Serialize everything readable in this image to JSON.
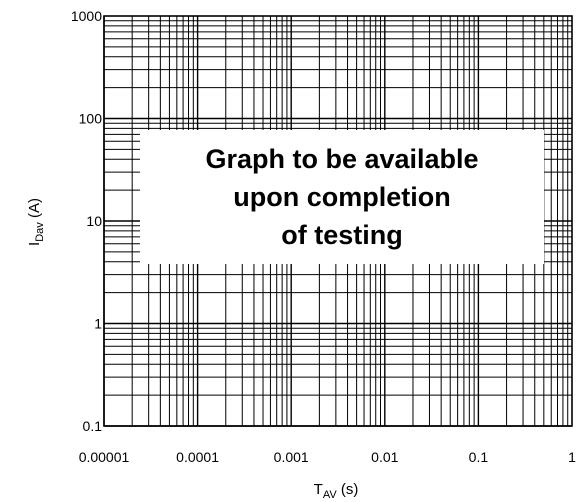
{
  "chart_data": {
    "type": "line",
    "title": "",
    "x_scale": "log",
    "y_scale": "log",
    "xlim": [
      1e-05,
      1
    ],
    "ylim": [
      0.1,
      1000
    ],
    "grid": true,
    "x_ticks": [
      "0.00001",
      "0.0001",
      "0.001",
      "0.01",
      "0.1",
      "1"
    ],
    "y_ticks": [
      "1000",
      "100",
      "10",
      "1",
      "0.1"
    ],
    "xlabel": {
      "main": "T",
      "sub": "AV",
      "suffix": " (s)"
    },
    "ylabel": {
      "main": "I",
      "sub": "Dav",
      "suffix": " (A)"
    },
    "series": [],
    "annotation_lines": [
      "Graph to be available",
      "upon completion",
      "of testing"
    ]
  }
}
